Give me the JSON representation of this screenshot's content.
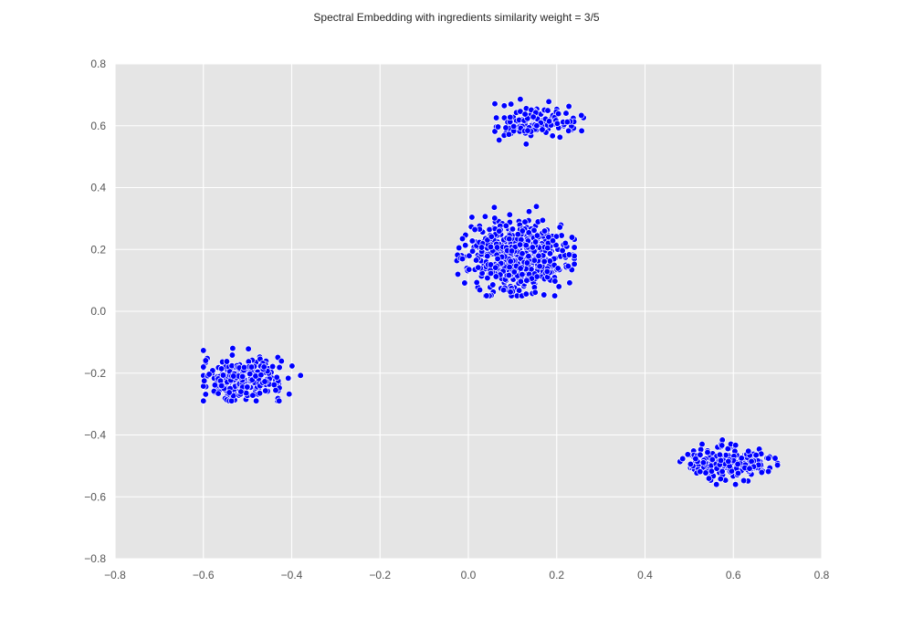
{
  "chart_data": {
    "type": "scatter",
    "title": "Spectral Embedding with ingredients similarity weight = 3/5",
    "xlabel": "",
    "ylabel": "",
    "xlim": [
      -0.8,
      0.8
    ],
    "ylim": [
      -0.8,
      0.8
    ],
    "xticks": [
      -0.8,
      -0.6,
      -0.4,
      -0.2,
      0.0,
      0.2,
      0.4,
      0.6,
      0.8
    ],
    "yticks": [
      -0.8,
      -0.6,
      -0.4,
      -0.2,
      0.0,
      0.2,
      0.4,
      0.6,
      0.8
    ],
    "xtick_labels": [
      "−0.8",
      "−0.6",
      "−0.4",
      "−0.2",
      "0.0",
      "0.2",
      "0.4",
      "0.6",
      "0.8"
    ],
    "ytick_labels": [
      "−0.8",
      "−0.6",
      "−0.4",
      "−0.2",
      "0.0",
      "0.2",
      "0.4",
      "0.6",
      "0.8"
    ],
    "grid": true,
    "colors": {
      "marker": "#0000ff",
      "marker_edge": "#ffffff",
      "plot_bg": "#e5e5e5",
      "grid": "#ffffff"
    },
    "series": [
      {
        "clusters": [
          {
            "cx": -0.51,
            "cy": -0.22,
            "sx": 0.045,
            "sy": 0.032,
            "xmin": -0.6,
            "xmax": -0.38,
            "ymin": -0.29,
            "ymax": -0.12,
            "n": 300
          },
          {
            "cx": 0.11,
            "cy": 0.18,
            "sx": 0.055,
            "sy": 0.055,
            "xmin": -0.05,
            "xmax": 0.24,
            "ymin": 0.05,
            "ymax": 0.37,
            "n": 620
          },
          {
            "cx": 0.15,
            "cy": 0.61,
            "sx": 0.05,
            "sy": 0.025,
            "xmin": 0.06,
            "xmax": 0.3,
            "ymin": 0.54,
            "ymax": 0.69,
            "n": 140
          },
          {
            "cx": 0.59,
            "cy": -0.49,
            "sx": 0.045,
            "sy": 0.026,
            "xmin": 0.47,
            "xmax": 0.7,
            "ymin": -0.56,
            "ymax": -0.4,
            "n": 230
          }
        ]
      }
    ]
  }
}
